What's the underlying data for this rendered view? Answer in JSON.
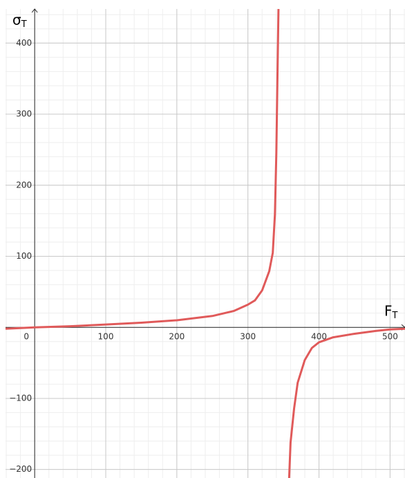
{
  "chart_data": {
    "type": "line",
    "x_label": "FT",
    "y_label": "σT",
    "xlim": [
      -41,
      521
    ],
    "ylim": [
      -212,
      448
    ],
    "xticks": [
      0,
      100,
      200,
      300,
      400,
      500
    ],
    "yticks": [
      {
        "value": -200,
        "label": "−200"
      },
      {
        "value": -100,
        "label": "−100"
      },
      100,
      200,
      300,
      400
    ],
    "grid": true,
    "series": [
      {
        "color": "#e05a5a",
        "x": [
          -41,
          0,
          50,
          100,
          150,
          200,
          250,
          280,
          300,
          310,
          320,
          330,
          335,
          338,
          340,
          342,
          343,
          350,
          358,
          360,
          365,
          370,
          380,
          390,
          400,
          420,
          450,
          480,
          500,
          521
        ],
        "values": [
          -2,
          0,
          1.5,
          4,
          6.5,
          10,
          16,
          23,
          32,
          38,
          52,
          79,
          105,
          159,
          246,
          382,
          448,
          null,
          -212,
          -162,
          -114,
          -78,
          -46,
          -29,
          -21,
          -14,
          -9,
          -5,
          -3,
          -2
        ]
      }
    ]
  }
}
